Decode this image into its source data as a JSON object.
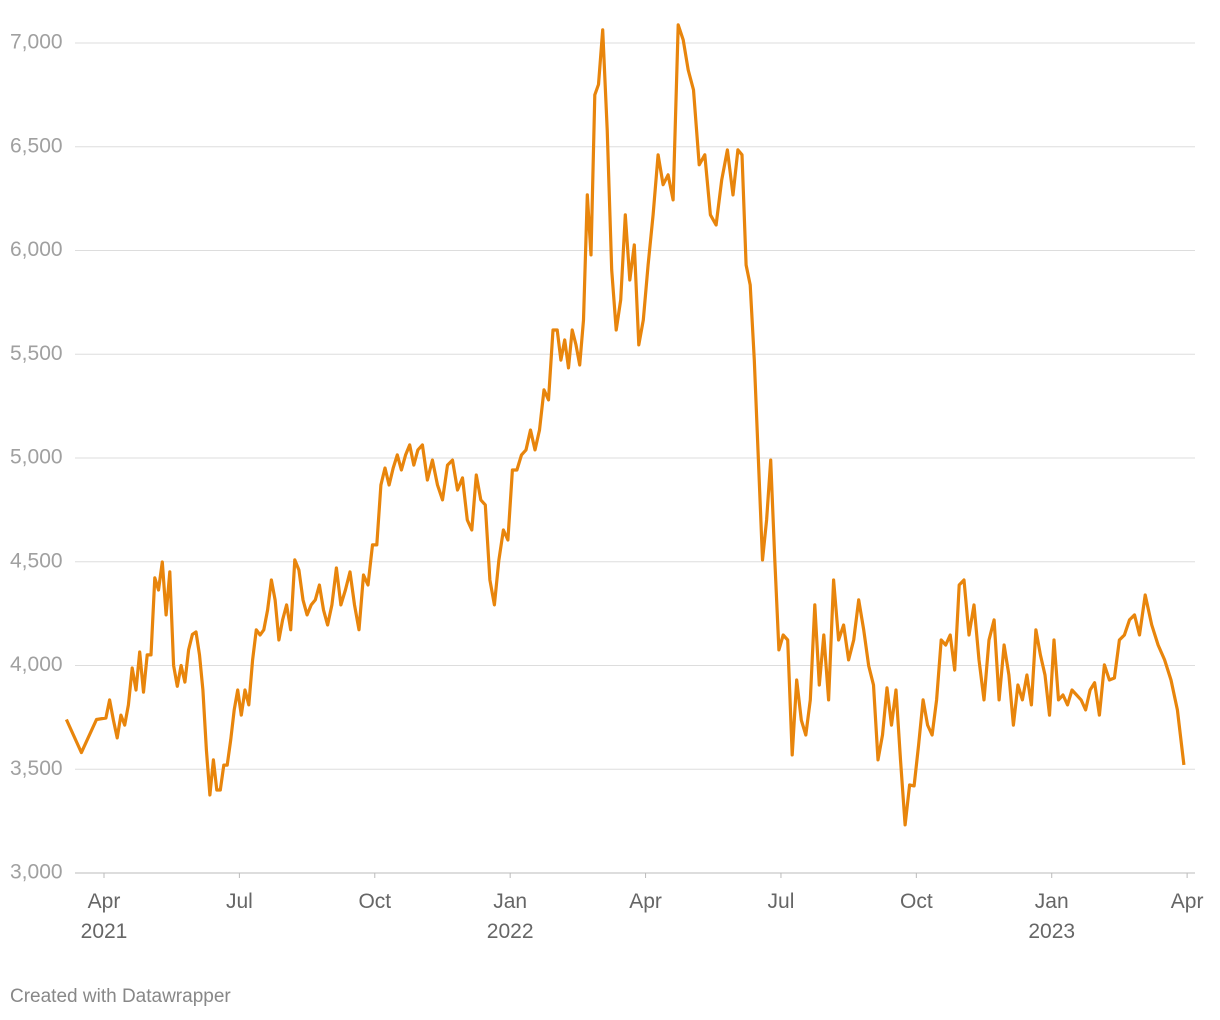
{
  "chart_data": {
    "type": "line",
    "color": "#e8850c",
    "grid": true,
    "x": [
      "2021-03",
      "2021-03",
      "2021-03",
      "2021-04",
      "2021-04",
      "2021-04",
      "2021-04",
      "2021-04",
      "2021-04",
      "2021-04",
      "2021-04",
      "2021-04",
      "2021-04",
      "2021-04",
      "2021-04",
      "2021-05",
      "2021-05",
      "2021-05",
      "2021-05",
      "2021-05",
      "2021-05",
      "2021-05",
      "2021-05",
      "2021-05",
      "2021-05",
      "2021-05",
      "2021-05",
      "2021-06",
      "2021-06",
      "2021-06",
      "2021-06",
      "2021-06",
      "2021-06",
      "2021-06",
      "2021-06",
      "2021-06",
      "2021-06",
      "2021-06",
      "2021-06",
      "2021-06",
      "2021-07",
      "2021-07",
      "2021-07",
      "2021-07",
      "2021-07",
      "2021-07",
      "2021-07",
      "2021-07",
      "2021-07",
      "2021-07",
      "2021-07",
      "2021-07",
      "2021-08",
      "2021-08",
      "2021-08",
      "2021-08",
      "2021-08",
      "2021-08",
      "2021-08",
      "2021-08",
      "2021-08",
      "2021-08",
      "2021-08",
      "2021-09",
      "2021-09",
      "2021-09",
      "2021-09",
      "2021-09",
      "2021-09",
      "2021-09",
      "2021-09",
      "2021-09",
      "2021-09",
      "2021-10",
      "2021-10",
      "2021-10",
      "2021-10",
      "2021-10",
      "2021-10",
      "2021-10",
      "2021-10",
      "2021-10",
      "2021-10",
      "2021-10",
      "2021-11",
      "2021-11",
      "2021-11",
      "2021-11",
      "2021-11",
      "2021-11",
      "2021-11",
      "2021-11",
      "2021-11",
      "2021-12",
      "2021-12",
      "2021-12",
      "2021-12",
      "2021-12",
      "2021-12",
      "2021-12",
      "2021-12",
      "2021-12",
      "2021-12",
      "2022-01",
      "2022-01",
      "2022-01",
      "2022-01",
      "2022-01",
      "2022-01",
      "2022-01",
      "2022-01",
      "2022-01",
      "2022-01",
      "2022-02",
      "2022-02",
      "2022-02",
      "2022-02",
      "2022-02",
      "2022-02",
      "2022-02",
      "2022-02",
      "2022-02",
      "2022-02",
      "2022-02",
      "2022-02",
      "2022-03",
      "2022-03",
      "2022-03",
      "2022-03",
      "2022-03",
      "2022-03",
      "2022-03",
      "2022-03",
      "2022-03",
      "2022-03",
      "2022-04",
      "2022-04",
      "2022-04",
      "2022-04",
      "2022-04",
      "2022-04",
      "2022-04",
      "2022-04",
      "2022-04",
      "2022-05",
      "2022-05",
      "2022-05",
      "2022-05",
      "2022-05",
      "2022-05",
      "2022-05",
      "2022-05",
      "2022-06",
      "2022-06",
      "2022-06",
      "2022-06",
      "2022-06",
      "2022-06",
      "2022-06",
      "2022-06",
      "2022-06",
      "2022-06",
      "2022-06",
      "2022-07",
      "2022-07",
      "2022-07",
      "2022-07",
      "2022-07",
      "2022-07",
      "2022-07",
      "2022-07",
      "2022-07",
      "2022-07",
      "2022-08",
      "2022-08",
      "2022-08",
      "2022-08",
      "2022-08",
      "2022-08",
      "2022-08",
      "2022-08",
      "2022-08",
      "2022-09",
      "2022-09",
      "2022-09",
      "2022-09",
      "2022-09",
      "2022-09",
      "2022-09",
      "2022-09",
      "2022-09",
      "2022-09",
      "2022-10",
      "2022-10",
      "2022-10",
      "2022-10",
      "2022-10",
      "2022-10",
      "2022-10",
      "2022-10",
      "2022-10",
      "2022-10",
      "2022-11",
      "2022-11",
      "2022-11",
      "2022-11",
      "2022-11",
      "2022-11",
      "2022-11",
      "2022-11",
      "2022-11",
      "2022-12",
      "2022-12",
      "2022-12",
      "2022-12",
      "2022-12",
      "2022-12",
      "2022-12",
      "2022-12",
      "2022-12",
      "2022-12",
      "2023-01",
      "2023-01",
      "2023-01",
      "2023-01",
      "2023-01",
      "2023-01",
      "2023-01",
      "2023-01",
      "2023-01",
      "2023-01",
      "2023-02",
      "2023-02",
      "2023-02",
      "2023-02",
      "2023-02",
      "2023-02",
      "2023-02",
      "2023-02",
      "2023-02",
      "2023-03",
      "2023-03",
      "2023-03",
      "2023-03",
      "2023-03",
      "2023-03",
      "2023-03"
    ],
    "values": [
      3740,
      3580,
      3740,
      3747,
      3834,
      3737,
      3651,
      3761,
      3713,
      3810,
      3988,
      3882,
      4065,
      3872,
      4051,
      4051,
      4422,
      4364,
      4499,
      4244,
      4451,
      4000,
      3900,
      4000,
      3920,
      4075,
      4150,
      4162,
      4051,
      3882,
      3593,
      3376,
      3545,
      3400,
      3400,
      3520,
      3520,
      3641,
      3786,
      3882,
      3761,
      3882,
      3810,
      4027,
      4172,
      4147,
      4172,
      4268,
      4412,
      4316,
      4123,
      4220,
      4292,
      4172,
      4509,
      4460,
      4316,
      4244,
      4292,
      4316,
      4388,
      4268,
      4195,
      4292,
      4470,
      4292,
      4364,
      4451,
      4292,
      4172,
      4436,
      4388,
      4581,
      4581,
      4870,
      4952,
      4870,
      4952,
      5015,
      4942,
      5015,
      5063,
      4966,
      5039,
      5063,
      4894,
      4990,
      4870,
      4798,
      4966,
      4990,
      4846,
      4904,
      4701,
      4653,
      4918,
      4798,
      4774,
      4412,
      4292,
      4509,
      4653,
      4605,
      4942,
      4942,
      5015,
      5039,
      5135,
      5039,
      5135,
      5328,
      5280,
      5617,
      5617,
      5472,
      5569,
      5434,
      5617,
      5545,
      5448,
      5665,
      6268,
      5979,
      6750,
      6800,
      7063,
      6582,
      5906,
      5617,
      5762,
      6172,
      5858,
      6027,
      5545,
      5665,
      5930,
      6172,
      6461,
      6317,
      6365,
      6244,
      7087,
      7015,
      6870,
      6774,
      6413,
      6461,
      6172,
      6123,
      6340,
      6485,
      6268,
      6485,
      6461,
      5930,
      5834,
      5472,
      4990,
      4509,
      4701,
      4990,
      4509,
      4075,
      4147,
      4123,
      3569,
      3930,
      3737,
      3665,
      3834,
      4292,
      3906,
      4147,
      3834,
      4412,
      4123,
      4195,
      4027,
      4123,
      4316,
      4172,
      3998,
      3906,
      3545,
      3665,
      3892,
      3713,
      3882,
      3545,
      3232,
      3424,
      3420,
      3617,
      3834,
      3713,
      3665,
      3834,
      4123,
      4099,
      4147,
      3978,
      4388,
      4412,
      4147,
      4292,
      4027,
      3834,
      4123,
      4220,
      3834,
      4099,
      3954,
      3713,
      3906,
      3834,
      3954,
      3810,
      4172,
      4051,
      3954,
      3761,
      4123,
      3834,
      3858,
      3810,
      3882,
      3858,
      3834,
      3786,
      3882,
      3917,
      3761,
      4003,
      3930,
      3940,
      4123,
      4147,
      4220,
      4244,
      4147,
      4340,
      4196,
      4099,
      4027,
      3930,
      3786,
      3521
    ],
    "ylim": [
      3000,
      7000
    ],
    "yticks": [
      {
        "value": 3000,
        "label": "3,000"
      },
      {
        "value": 3500,
        "label": "3,500"
      },
      {
        "value": 4000,
        "label": "4,000"
      },
      {
        "value": 4500,
        "label": "4,500"
      },
      {
        "value": 5000,
        "label": "5,000"
      },
      {
        "value": 5500,
        "label": "5,500"
      },
      {
        "value": 6000,
        "label": "6,000"
      },
      {
        "value": 6500,
        "label": "6,500"
      },
      {
        "value": 7000,
        "label": "7,000"
      }
    ],
    "xticks": [
      {
        "value": "2021-04",
        "label": "Apr"
      },
      {
        "value": "2021-07",
        "label": "Jul"
      },
      {
        "value": "2021-10",
        "label": "Oct"
      },
      {
        "value": "2022-01",
        "label": "Jan"
      },
      {
        "value": "2022-04",
        "label": "Apr"
      },
      {
        "value": "2022-07",
        "label": "Jul"
      },
      {
        "value": "2022-10",
        "label": "Oct"
      },
      {
        "value": "2023-01",
        "label": "Jan"
      },
      {
        "value": "2023-04",
        "label": "Apr"
      }
    ],
    "xtick_years": [
      {
        "value": "2021-04",
        "label": "2021"
      },
      {
        "value": "2022-01",
        "label": "2022"
      },
      {
        "value": "2023-01",
        "label": "2023"
      }
    ],
    "credit": "Created with Datawrapper"
  }
}
